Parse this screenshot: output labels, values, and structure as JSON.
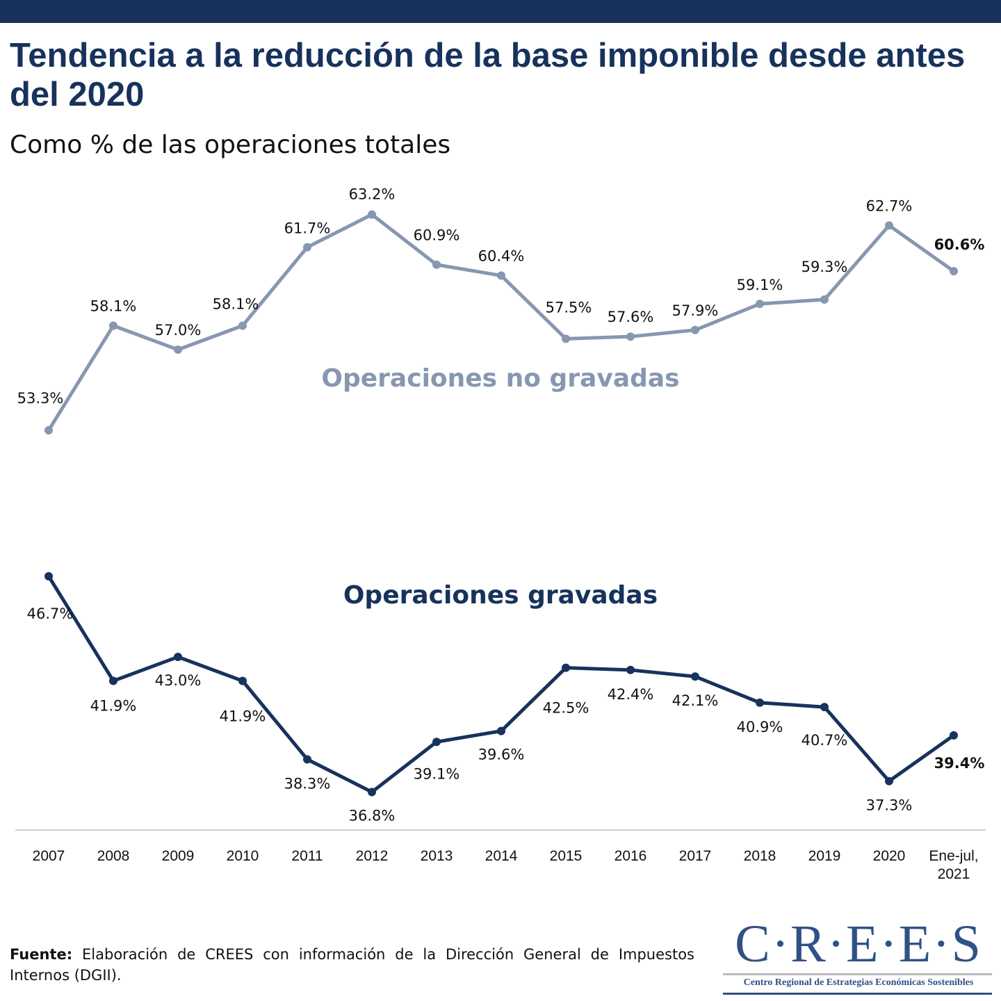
{
  "header": {
    "title": "Tendencia a la reducción de la base imponible desde antes del 2020",
    "subtitle": "Como % de las operaciones totales"
  },
  "chart_data": {
    "type": "line",
    "title": "Tendencia a la reducción de la base imponible desde antes del 2020",
    "subtitle": "Como % de las operaciones totales",
    "xlabel": "",
    "ylabel": "",
    "categories": [
      "2007",
      "2008",
      "2009",
      "2010",
      "2011",
      "2012",
      "2013",
      "2014",
      "2015",
      "2016",
      "2017",
      "2018",
      "2019",
      "2020",
      "Ene-jul, 2021"
    ],
    "series": [
      {
        "name": "Operaciones no gravadas",
        "color": "#8797b0",
        "values": [
          53.3,
          58.1,
          57.0,
          58.1,
          61.7,
          63.2,
          60.9,
          60.4,
          57.5,
          57.6,
          57.9,
          59.1,
          59.3,
          62.7,
          60.6
        ],
        "labels": [
          "53.3%",
          "58.1%",
          "57.0%",
          "58.1%",
          "61.7%",
          "63.2%",
          "60.9%",
          "60.4%",
          "57.5%",
          "57.6%",
          "57.9%",
          "59.1%",
          "59.3%",
          "62.7%",
          "60.6%"
        ]
      },
      {
        "name": "Operaciones gravadas",
        "color": "#17325c",
        "values": [
          46.7,
          41.9,
          43.0,
          41.9,
          38.3,
          36.8,
          39.1,
          39.6,
          42.5,
          42.4,
          42.1,
          40.9,
          40.7,
          37.3,
          39.4
        ],
        "labels": [
          "46.7%",
          "41.9%",
          "43.0%",
          "41.9%",
          "38.3%",
          "36.8%",
          "39.1%",
          "39.6%",
          "42.5%",
          "42.4%",
          "42.1%",
          "40.9%",
          "40.7%",
          "37.3%",
          "39.4%"
        ]
      }
    ],
    "grid": false,
    "legend": "inline labels"
  },
  "footer": {
    "source_label": "Fuente:",
    "source_text": " Elaboración de CREES con información de la Dirección General de Impuestos Internos (DGII)."
  },
  "logo": {
    "name": "C·R·E·E·S",
    "tagline": "Centro Regional de Estrategias Económicas Sostenibles"
  }
}
